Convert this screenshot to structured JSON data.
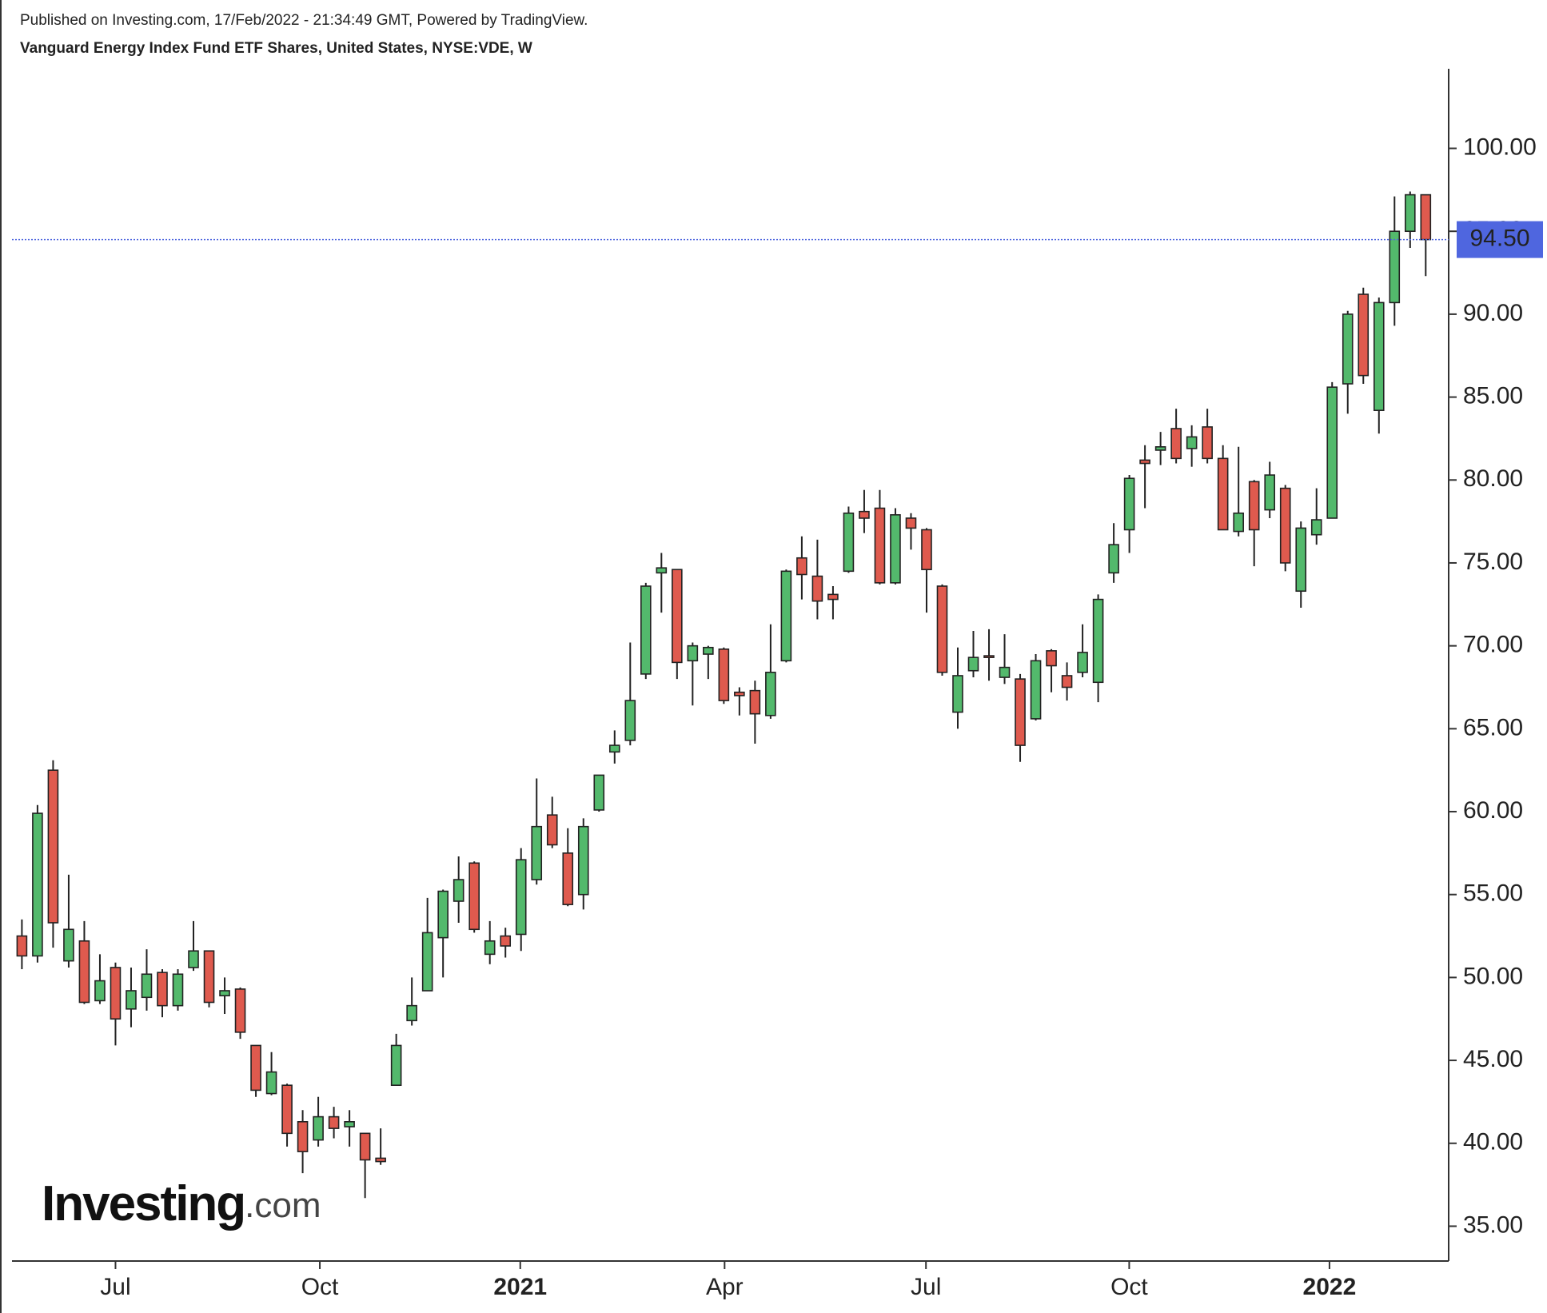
{
  "header": {
    "published": "Published on Investing.com, 17/Feb/2022 - 21:34:49 GMT, Powered by TradingView.",
    "instrument": "Vanguard Energy Index Fund ETF Shares, United States, NYSE:VDE, W"
  },
  "logo": {
    "brand": "Investing",
    "suffix": ".com"
  },
  "chart_data": {
    "type": "candlestick",
    "categories": [
      null,
      null,
      null,
      null,
      null,
      null,
      null,
      null,
      null,
      null,
      null,
      null,
      null,
      null,
      null,
      null,
      null,
      null,
      null,
      null,
      null,
      null,
      null,
      null,
      null,
      null,
      null,
      null,
      null,
      null,
      null,
      null,
      null,
      null,
      null,
      null,
      null,
      null,
      null,
      null,
      null,
      null,
      null,
      null,
      null,
      null,
      null,
      null,
      null,
      null,
      null,
      null,
      null,
      null,
      null,
      null,
      null,
      null,
      null,
      null,
      null,
      null,
      null,
      null,
      null,
      null,
      null,
      null,
      null,
      null,
      null,
      null,
      null,
      null,
      null,
      null,
      null,
      null,
      null,
      null,
      null,
      null,
      null,
      null,
      null,
      null,
      null,
      null,
      null,
      null,
      null
    ],
    "open": [
      52.5,
      51.3,
      62.5,
      51.0,
      52.2,
      48.6,
      50.6,
      48.1,
      48.8,
      50.3,
      48.3,
      50.6,
      51.6,
      48.9,
      49.3,
      45.9,
      43.0,
      43.5,
      41.3,
      40.2,
      41.6,
      41.0,
      40.6,
      39.1,
      43.5,
      47.4,
      49.2,
      52.4,
      54.6,
      56.9,
      51.4,
      52.5,
      52.6,
      55.9,
      59.8,
      57.5,
      55.0,
      60.1,
      63.6,
      64.3,
      68.3,
      74.4,
      74.6,
      69.1,
      69.5,
      69.8,
      67.2,
      67.3,
      65.8,
      69.1,
      75.3,
      74.2,
      73.1,
      74.5,
      78.1,
      78.3,
      73.8,
      77.7,
      77.0,
      73.6,
      66.0,
      68.5,
      69.4,
      68.1,
      68.0,
      65.6,
      69.7,
      68.2,
      68.4,
      67.8,
      74.4,
      77.0,
      81.2,
      81.8,
      83.1,
      81.9,
      83.2,
      81.3,
      76.9,
      79.9,
      78.2,
      79.5,
      73.3,
      76.7,
      77.7,
      85.8,
      91.2,
      84.2,
      90.7,
      95.0,
      97.2
    ],
    "high": [
      53.5,
      60.4,
      63.1,
      56.2,
      53.4,
      51.4,
      50.9,
      50.6,
      51.7,
      50.5,
      50.5,
      53.4,
      51.6,
      50.0,
      49.4,
      45.9,
      45.5,
      43.6,
      42.0,
      42.8,
      42.2,
      42.0,
      40.6,
      40.9,
      46.6,
      50.0,
      54.8,
      55.3,
      57.3,
      57.0,
      53.4,
      53.0,
      57.8,
      62.0,
      60.9,
      59.0,
      59.6,
      62.2,
      64.9,
      70.2,
      73.8,
      75.6,
      74.6,
      70.2,
      70.0,
      69.9,
      67.5,
      67.9,
      71.3,
      74.6,
      76.6,
      76.4,
      73.6,
      78.4,
      79.4,
      79.4,
      78.3,
      78.0,
      77.1,
      73.7,
      69.9,
      70.9,
      71.0,
      70.7,
      68.3,
      69.5,
      69.8,
      69.0,
      71.3,
      73.1,
      77.4,
      80.3,
      82.1,
      82.9,
      84.3,
      83.3,
      84.3,
      82.1,
      82.0,
      80.0,
      81.1,
      79.7,
      77.5,
      79.5,
      85.9,
      90.2,
      91.6,
      91.0,
      97.1,
      97.4,
      97.2
    ],
    "low": [
      50.5,
      50.9,
      51.8,
      50.6,
      48.4,
      48.4,
      45.9,
      47.0,
      48.0,
      47.6,
      48.0,
      50.4,
      48.2,
      47.8,
      46.3,
      42.8,
      42.9,
      39.8,
      38.2,
      39.8,
      40.3,
      39.8,
      36.7,
      38.7,
      43.5,
      47.1,
      49.2,
      50.0,
      53.3,
      52.7,
      50.8,
      51.2,
      51.6,
      55.6,
      57.8,
      54.3,
      54.1,
      60.0,
      62.9,
      64.0,
      68.0,
      72.0,
      68.0,
      66.4,
      68.0,
      66.5,
      65.8,
      64.1,
      65.6,
      69.0,
      72.8,
      71.6,
      71.6,
      74.4,
      76.8,
      73.7,
      73.7,
      75.8,
      72.0,
      68.2,
      65.0,
      68.1,
      67.9,
      67.7,
      63.0,
      65.5,
      67.2,
      66.7,
      68.1,
      66.6,
      73.8,
      75.6,
      78.3,
      80.9,
      81.0,
      80.8,
      81.0,
      77.0,
      76.6,
      74.8,
      77.7,
      74.5,
      72.3,
      76.1,
      77.7,
      84.0,
      85.8,
      82.8,
      89.3,
      94.0,
      92.3
    ],
    "close": [
      51.3,
      59.9,
      53.3,
      52.9,
      48.5,
      49.8,
      47.5,
      49.2,
      50.2,
      48.3,
      50.2,
      51.6,
      48.5,
      49.2,
      46.7,
      43.2,
      44.3,
      40.6,
      39.5,
      41.6,
      40.9,
      41.3,
      39.0,
      38.9,
      45.9,
      48.3,
      52.7,
      55.2,
      55.9,
      52.9,
      52.2,
      51.9,
      57.1,
      59.1,
      58.0,
      54.4,
      59.1,
      62.2,
      64.0,
      66.7,
      73.6,
      74.7,
      69.0,
      70.0,
      69.9,
      66.7,
      67.0,
      65.9,
      68.4,
      74.5,
      74.3,
      72.7,
      72.8,
      78.0,
      77.7,
      73.8,
      77.9,
      77.1,
      74.6,
      68.4,
      68.2,
      69.3,
      69.3,
      68.7,
      64.0,
      69.1,
      68.8,
      67.5,
      69.6,
      72.8,
      76.1,
      80.1,
      81.0,
      82.0,
      81.3,
      82.6,
      81.3,
      77.0,
      78.0,
      77.0,
      80.3,
      75.0,
      77.1,
      77.6,
      85.6,
      90.0,
      86.3,
      90.7,
      95.0,
      97.2,
      94.5
    ],
    "up_color": "#53b96c",
    "down_color": "#df5a4e",
    "ylim": [
      32.9,
      104.8
    ],
    "yticks": [
      {
        "value": 35,
        "label": "35.00"
      },
      {
        "value": 40,
        "label": "40.00"
      },
      {
        "value": 45,
        "label": "45.00"
      },
      {
        "value": 50,
        "label": "50.00"
      },
      {
        "value": 55,
        "label": "55.00"
      },
      {
        "value": 60,
        "label": "60.00"
      },
      {
        "value": 65,
        "label": "65.00"
      },
      {
        "value": 70,
        "label": "70.00"
      },
      {
        "value": 75,
        "label": "75.00"
      },
      {
        "value": 80,
        "label": "80.00"
      },
      {
        "value": 85,
        "label": "85.00"
      },
      {
        "value": 90,
        "label": "90.00"
      },
      {
        "value": 95,
        "label": "95.00"
      },
      {
        "value": 100,
        "label": "100.00"
      }
    ],
    "xticks": [
      {
        "value": 6.0,
        "label": "Jul"
      },
      {
        "value": 19.1,
        "label": "Oct"
      },
      {
        "value": 31.95,
        "label": "2021"
      },
      {
        "value": 45.05,
        "label": "Apr"
      },
      {
        "value": 57.96,
        "label": "Jul"
      },
      {
        "value": 70.99,
        "label": "Oct"
      },
      {
        "value": 83.83,
        "label": "2022"
      }
    ],
    "bold_xticks": [
      "2021",
      "2022"
    ],
    "last_price": {
      "value": 94.5,
      "label": "94.50"
    },
    "last_price_color": "#4f66df"
  }
}
